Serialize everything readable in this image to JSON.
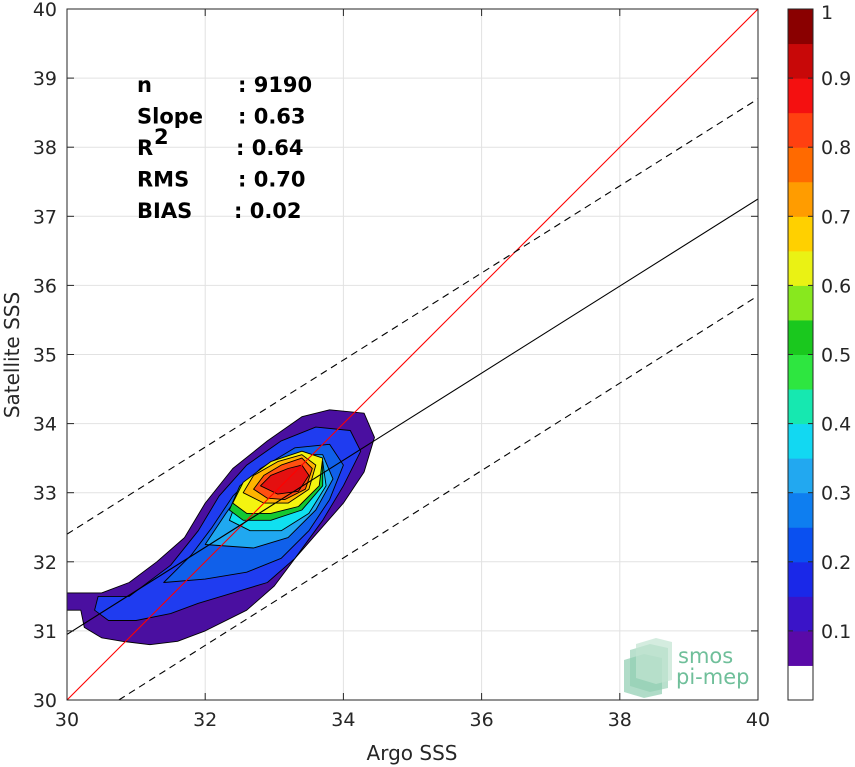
{
  "chart_data": {
    "type": "contour-density",
    "xlabel": "Argo SSS",
    "ylabel": "Satellite SSS",
    "xlim": [
      30,
      40
    ],
    "ylim": [
      30,
      40
    ],
    "x_ticks": [
      "30",
      "32",
      "34",
      "36",
      "38",
      "40"
    ],
    "y_ticks": [
      "30",
      "31",
      "32",
      "33",
      "34",
      "35",
      "36",
      "37",
      "38",
      "39",
      "40"
    ],
    "grid": true,
    "lines": [
      {
        "kind": "one-to-one",
        "color": "#ff0000",
        "style": "solid",
        "x": [
          30,
          40
        ],
        "y": [
          30,
          40
        ]
      },
      {
        "kind": "regression",
        "color": "#000000",
        "style": "solid",
        "x": [
          30,
          40
        ],
        "y": [
          30.95,
          37.25
        ]
      },
      {
        "kind": "upper-bound",
        "color": "#000000",
        "style": "dashed",
        "x": [
          30,
          40
        ],
        "y": [
          32.4,
          38.7
        ]
      },
      {
        "kind": "lower-bound",
        "color": "#000000",
        "style": "dashed",
        "x": [
          30.75,
          40
        ],
        "y": [
          30,
          35.85
        ]
      }
    ],
    "contour_levels": [
      {
        "level": 0.05,
        "color": "#4a0fa0",
        "polygon": [
          [
            29.9,
            31.55
          ],
          [
            30.5,
            31.55
          ],
          [
            30.9,
            31.7
          ],
          [
            31.3,
            32.0
          ],
          [
            31.7,
            32.35
          ],
          [
            32.0,
            32.85
          ],
          [
            32.4,
            33.35
          ],
          [
            32.9,
            33.75
          ],
          [
            33.4,
            34.1
          ],
          [
            33.8,
            34.2
          ],
          [
            34.3,
            34.15
          ],
          [
            34.45,
            33.8
          ],
          [
            34.3,
            33.3
          ],
          [
            34.0,
            32.85
          ],
          [
            33.65,
            32.45
          ],
          [
            33.3,
            32.05
          ],
          [
            33.0,
            31.65
          ],
          [
            32.6,
            31.3
          ],
          [
            32.0,
            31.0
          ],
          [
            31.6,
            30.85
          ],
          [
            31.2,
            30.8
          ],
          [
            30.8,
            30.85
          ],
          [
            30.5,
            30.9
          ],
          [
            30.25,
            31.05
          ],
          [
            30.2,
            31.3
          ],
          [
            29.9,
            31.3
          ]
        ]
      },
      {
        "level": 0.1,
        "color": "#1f3cf0",
        "polygon": [
          [
            30.4,
            31.3
          ],
          [
            30.45,
            31.5
          ],
          [
            30.9,
            31.5
          ],
          [
            31.5,
            31.95
          ],
          [
            31.9,
            32.45
          ],
          [
            32.2,
            32.95
          ],
          [
            32.6,
            33.4
          ],
          [
            33.1,
            33.75
          ],
          [
            33.6,
            33.95
          ],
          [
            34.1,
            33.9
          ],
          [
            34.25,
            33.6
          ],
          [
            34.0,
            33.1
          ],
          [
            33.7,
            32.6
          ],
          [
            33.3,
            32.05
          ],
          [
            32.9,
            31.7
          ],
          [
            32.4,
            31.55
          ],
          [
            31.9,
            31.4
          ],
          [
            31.5,
            31.25
          ],
          [
            31.0,
            31.15
          ],
          [
            30.6,
            31.15
          ]
        ]
      },
      {
        "level": 0.2,
        "color": "#1060ea",
        "polygon": [
          [
            31.4,
            31.7
          ],
          [
            31.8,
            32.1
          ],
          [
            32.1,
            32.5
          ],
          [
            32.4,
            32.95
          ],
          [
            32.8,
            33.35
          ],
          [
            33.3,
            33.65
          ],
          [
            33.8,
            33.7
          ],
          [
            34.0,
            33.4
          ],
          [
            33.8,
            32.9
          ],
          [
            33.5,
            32.45
          ],
          [
            33.1,
            32.05
          ],
          [
            32.6,
            31.85
          ],
          [
            32.0,
            31.75
          ]
        ]
      },
      {
        "level": 0.3,
        "color": "#20a8f0",
        "polygon": [
          [
            32.0,
            32.25
          ],
          [
            32.3,
            32.7
          ],
          [
            32.55,
            33.05
          ],
          [
            32.9,
            33.35
          ],
          [
            33.3,
            33.55
          ],
          [
            33.7,
            33.55
          ],
          [
            33.85,
            33.2
          ],
          [
            33.6,
            32.75
          ],
          [
            33.2,
            32.35
          ],
          [
            32.7,
            32.2
          ]
        ]
      },
      {
        "level": 0.4,
        "color": "#10e0f0",
        "polygon": [
          [
            32.35,
            32.6
          ],
          [
            32.5,
            33.0
          ],
          [
            32.85,
            33.35
          ],
          [
            33.3,
            33.5
          ],
          [
            33.7,
            33.45
          ],
          [
            33.75,
            33.1
          ],
          [
            33.5,
            32.7
          ],
          [
            33.1,
            32.45
          ],
          [
            32.65,
            32.45
          ]
        ]
      },
      {
        "level": 0.5,
        "color": "#14c832",
        "polygon": [
          [
            32.35,
            32.75
          ],
          [
            32.5,
            33.1
          ],
          [
            32.9,
            33.4
          ],
          [
            33.35,
            33.55
          ],
          [
            33.7,
            33.45
          ],
          [
            33.7,
            33.1
          ],
          [
            33.4,
            32.75
          ],
          [
            32.95,
            32.6
          ],
          [
            32.55,
            32.6
          ]
        ]
      },
      {
        "level": 0.6,
        "color": "#f4f410",
        "polygon": [
          [
            32.4,
            32.85
          ],
          [
            32.55,
            33.15
          ],
          [
            32.95,
            33.45
          ],
          [
            33.4,
            33.6
          ],
          [
            33.7,
            33.5
          ],
          [
            33.65,
            33.1
          ],
          [
            33.35,
            32.8
          ],
          [
            32.95,
            32.7
          ],
          [
            32.6,
            32.7
          ]
        ]
      },
      {
        "level": 0.7,
        "color": "#ffb400",
        "polygon": [
          [
            32.55,
            33.0
          ],
          [
            32.7,
            33.25
          ],
          [
            33.05,
            33.45
          ],
          [
            33.4,
            33.55
          ],
          [
            33.6,
            33.4
          ],
          [
            33.5,
            33.05
          ],
          [
            33.2,
            32.85
          ],
          [
            32.85,
            32.85
          ]
        ]
      },
      {
        "level": 0.8,
        "color": "#ff5010",
        "polygon": [
          [
            32.7,
            33.05
          ],
          [
            32.85,
            33.25
          ],
          [
            33.1,
            33.4
          ],
          [
            33.4,
            33.5
          ],
          [
            33.55,
            33.35
          ],
          [
            33.45,
            33.05
          ],
          [
            33.15,
            32.9
          ],
          [
            32.9,
            32.92
          ]
        ]
      },
      {
        "level": 0.9,
        "color": "#e41010",
        "polygon": [
          [
            32.8,
            33.1
          ],
          [
            32.95,
            33.25
          ],
          [
            33.2,
            33.35
          ],
          [
            33.4,
            33.4
          ],
          [
            33.5,
            33.25
          ],
          [
            33.35,
            33.02
          ],
          [
            33.05,
            32.98
          ]
        ]
      }
    ],
    "colorbar": {
      "range": [
        0,
        1
      ],
      "tick_labels": [
        "0.1",
        "0.2",
        "0.3",
        "0.4",
        "0.5",
        "0.6",
        "0.7",
        "0.8",
        "0.9",
        "1"
      ],
      "colors": [
        "#ffffff",
        "#5a0aa8",
        "#3a14c8",
        "#1a28e8",
        "#0a50f0",
        "#0e7ef0",
        "#22a8f0",
        "#12d8f2",
        "#16e8b0",
        "#2ee640",
        "#1ac81e",
        "#88e81e",
        "#eaf214",
        "#ffd000",
        "#ff9c00",
        "#ff6a00",
        "#ff4010",
        "#f41010",
        "#c80808",
        "#8a0000"
      ]
    },
    "annotations": [
      {
        "label": "n",
        "value": ": 9190"
      },
      {
        "label": "Slope",
        "value": ": 0.63"
      },
      {
        "label": "R",
        "sup": "2",
        "value": ": 0.64"
      },
      {
        "label": "RMS",
        "value": ": 0.70"
      },
      {
        "label": "BIAS",
        "value": ": 0.02"
      }
    ]
  },
  "logo": {
    "line1": "smos",
    "line2": "pi-mep"
  }
}
